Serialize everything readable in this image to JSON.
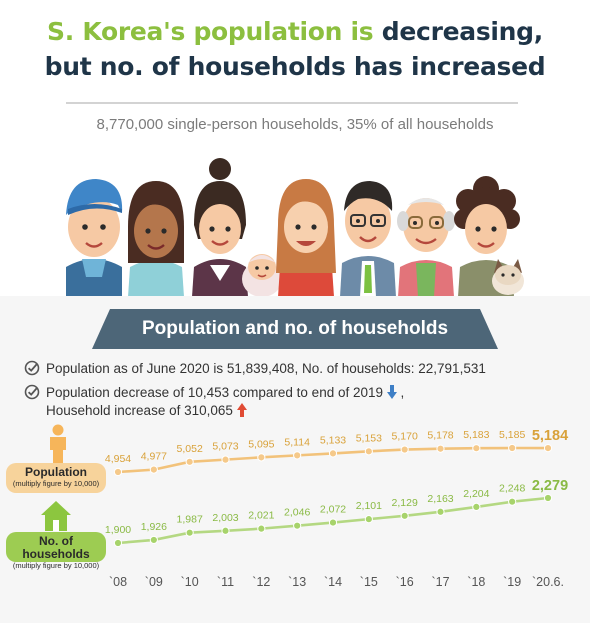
{
  "headline": {
    "line1_green": "S. Korea's population is",
    "line1_dark": "decreasing,",
    "line2": "but no. of households has increased"
  },
  "subtitle": "8,770,000 single-person households, 35% of all households",
  "illustration": {
    "people": [
      "boy-in-cap",
      "young-woman",
      "woman-with-bun",
      "baby",
      "woman-long-hair",
      "man-with-glasses",
      "grandfather-with-glasses",
      "grandmother-curly-hair",
      "cat"
    ]
  },
  "panel": {
    "title": "Population and no. of households",
    "notes": [
      {
        "text": "Population as of June 2020 is 51,839,408, No. of households: 22,791,531"
      },
      {
        "text": "Population decrease of 10,453 compared to end of 2019",
        "arrow": "down"
      },
      {
        "text": "Household increase of 310,065",
        "arrow": "up"
      }
    ],
    "note_tail": ","
  },
  "colors": {
    "headline_dark": "#1f3548",
    "headline_green": "#8cbf3f",
    "banner": "#4d6678",
    "population": "#f2c27a",
    "population_label_bg": "#f7d39b",
    "households": "#b4d882",
    "households_label_bg": "#9dcc52",
    "arrow_down": "#3e7fc6",
    "arrow_up": "#e04b34"
  },
  "chart_data": {
    "type": "line",
    "categories": [
      "`08",
      "`09",
      "`10",
      "`11",
      "`12",
      "`13",
      "`14",
      "`15",
      "`16",
      "`17",
      "`18",
      "`19",
      "`20.6."
    ],
    "series": [
      {
        "name": "Population",
        "label_line1": "Population",
        "label_line2": "(multiply figure by 10,000)",
        "values": [
          4954,
          4977,
          5052,
          5073,
          5095,
          5114,
          5133,
          5153,
          5170,
          5178,
          5183,
          5185,
          5184
        ],
        "value_labels": [
          "4,954",
          "4,977",
          "5,052",
          "5,073",
          "5,095",
          "5,114",
          "5,133",
          "5,153",
          "5,170",
          "5,178",
          "5,183",
          "5,185",
          "5,184"
        ]
      },
      {
        "name": "No. of households",
        "label_line1": "No. of households",
        "label_line2": "(multiply figure by 10,000)",
        "values": [
          1900,
          1926,
          1987,
          2003,
          2021,
          2046,
          2072,
          2101,
          2129,
          2163,
          2204,
          2248,
          2279
        ],
        "value_labels": [
          "1,900",
          "1,926",
          "1,987",
          "2,003",
          "2,021",
          "2,046",
          "2,072",
          "2,101",
          "2,129",
          "2,163",
          "2,204",
          "2,248",
          "2,279"
        ]
      }
    ],
    "grid": false,
    "legend": "left"
  }
}
